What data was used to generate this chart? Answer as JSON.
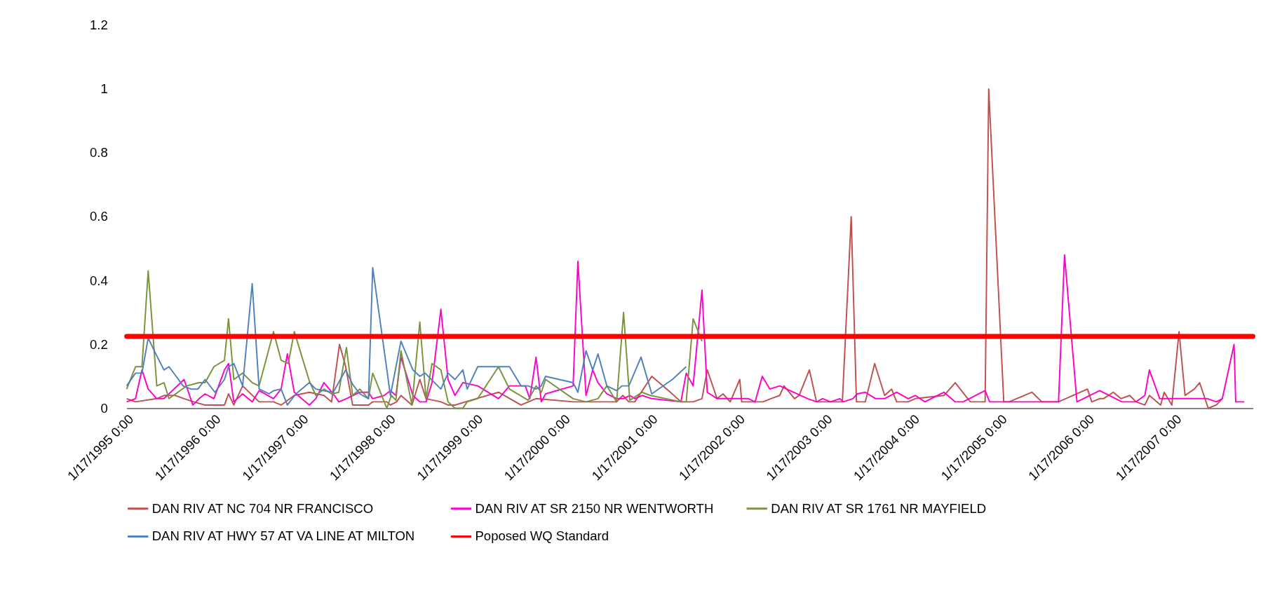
{
  "chart_data": {
    "type": "line",
    "xlim": [
      "1995-01-17",
      "2007-12-10"
    ],
    "xticks": [
      {
        "value": "1995-01-17",
        "label": "1/17/1995 0:00"
      },
      {
        "value": "1996-01-17",
        "label": "1/17/1996 0:00"
      },
      {
        "value": "1997-01-17",
        "label": "1/17/1997 0:00"
      },
      {
        "value": "1998-01-17",
        "label": "1/17/1998 0:00"
      },
      {
        "value": "1999-01-17",
        "label": "1/17/1999 0:00"
      },
      {
        "value": "2000-01-17",
        "label": "1/17/2000 0:00"
      },
      {
        "value": "2001-01-17",
        "label": "1/17/2001 0:00"
      },
      {
        "value": "2002-01-17",
        "label": "1/17/2002 0:00"
      },
      {
        "value": "2003-01-17",
        "label": "1/17/2003 0:00"
      },
      {
        "value": "2004-01-17",
        "label": "1/17/2004 0:00"
      },
      {
        "value": "2005-01-17",
        "label": "1/17/2005 0:00"
      },
      {
        "value": "2006-01-17",
        "label": "1/17/2006 0:00"
      },
      {
        "value": "2007-01-17",
        "label": "1/17/2007 0:00"
      }
    ],
    "ylim": [
      0,
      1.2
    ],
    "yticks": [
      0,
      0.2,
      0.4,
      0.6,
      0.8,
      1,
      1.2
    ],
    "grid": false,
    "legend": "bottom",
    "line_style": "solid",
    "series": [
      {
        "name": "DAN RIV AT NC 704 NR FRANCISCO",
        "color": "#c0504d",
        "x": [
          "1995-01-17",
          "1995-02-23",
          "1995-05-23",
          "1995-06-22",
          "1995-08-08",
          "1995-09-14",
          "1995-10-24",
          "1995-12-11",
          "1996-03-01",
          "1996-03-18",
          "1996-04-09",
          "1996-05-16",
          "1996-07-24",
          "1996-09-22",
          "1996-10-24",
          "1996-12-18",
          "1997-02-19",
          "1997-04-21",
          "1997-05-23",
          "1997-06-25",
          "1997-07-21",
          "1997-08-19",
          "1997-10-24",
          "1997-11-11",
          "1998-01-09",
          "1998-01-24",
          "1998-02-19",
          "1998-03-09",
          "1998-04-24",
          "1998-05-27",
          "1998-06-22",
          "1998-08-23",
          "1998-09-22",
          "1998-10-21",
          "1999-01-17",
          "1999-04-21",
          "1999-07-24",
          "1999-09-25",
          "2000-02-27",
          "2000-08-27",
          "2000-09-22",
          "2000-10-17",
          "2000-11-11",
          "2001-01-21",
          "2001-04-09",
          "2001-05-23",
          "2001-07-13",
          "2001-08-19",
          "2001-09-10",
          "2001-10-21",
          "2001-11-15",
          "2001-12-15",
          "2002-01-24",
          "2002-02-01",
          "2002-05-01",
          "2002-06-03",
          "2002-07-10",
          "2002-07-28",
          "2002-09-10",
          "2002-09-29",
          "2002-11-11",
          "2002-12-11",
          "2003-03-29",
          "2003-05-05",
          "2003-05-27",
          "2003-07-03",
          "2003-08-11",
          "2003-09-22",
          "2003-10-21",
          "2003-11-11",
          "2003-12-29",
          "2004-01-28",
          "2004-05-27",
          "2004-07-13",
          "2004-09-14",
          "2004-11-15",
          "2004-11-30",
          "2005-02-01",
          "2005-02-23",
          "2005-05-30",
          "2005-07-10",
          "2005-09-18",
          "2006-01-17",
          "2006-02-04",
          "2006-03-09",
          "2006-03-25",
          "2006-05-05",
          "2006-06-06",
          "2006-07-13",
          "2006-08-08",
          "2006-09-14",
          "2006-10-03",
          "2006-11-19",
          "2006-12-04",
          "2007-01-05",
          "2007-02-04",
          "2007-03-01",
          "2007-04-09",
          "2007-05-01",
          "2007-06-06",
          "2007-07-10",
          "2007-08-04"
        ],
        "values": [
          0.03,
          0.02,
          0.03,
          0.04,
          0.04,
          0.03,
          0.02,
          0.01,
          0.01,
          0.045,
          0.01,
          0.07,
          0.02,
          0.02,
          0.01,
          0.04,
          0.05,
          0.04,
          0.02,
          0.2,
          0.13,
          0.01,
          0.01,
          0.02,
          0.02,
          0.01,
          0.02,
          0.04,
          0.01,
          0.09,
          0.03,
          0.02,
          0.01,
          0.01,
          0.03,
          0.05,
          0.01,
          0.03,
          0.02,
          0.02,
          0.04,
          0.02,
          0.02,
          0.1,
          0.05,
          0.02,
          0.02,
          0.03,
          0.12,
          0.03,
          0.045,
          0.02,
          0.09,
          0.02,
          0.02,
          0.03,
          0.04,
          0.07,
          0.03,
          0.04,
          0.12,
          0.02,
          0.02,
          0.6,
          0.02,
          0.02,
          0.14,
          0.04,
          0.06,
          0.02,
          0.02,
          0.03,
          0.04,
          0.08,
          0.02,
          0.02,
          1.0,
          0.02,
          0.02,
          0.05,
          0.02,
          0.02,
          0.06,
          0.02,
          0.03,
          0.03,
          0.05,
          0.03,
          0.04,
          0.02,
          0.01,
          0.04,
          0.01,
          0.05,
          0.01,
          0.24,
          0.04,
          0.06,
          0.08,
          0.0,
          0.01,
          0.03
        ]
      },
      {
        "name": "DAN RIV AT SR 2150 NR WENTWORTH",
        "color": "#ff00cc",
        "x": [
          "1995-01-17",
          "1995-02-23",
          "1995-03-22",
          "1995-04-17",
          "1995-05-23",
          "1995-06-22",
          "1995-07-13",
          "1995-09-14",
          "1995-10-21",
          "1995-11-16",
          "1995-12-11",
          "1996-01-17",
          "1996-03-01",
          "1996-03-18",
          "1996-04-09",
          "1996-05-16",
          "1996-06-25",
          "1996-07-24",
          "1996-09-22",
          "1996-10-24",
          "1996-11-19",
          "1996-12-18",
          "1997-02-19",
          "1997-03-18",
          "1997-04-21",
          "1997-05-30",
          "1997-06-22",
          "1997-07-24",
          "1997-09-18",
          "1997-10-24",
          "1997-11-11",
          "1997-12-29",
          "1998-01-24",
          "1998-02-16",
          "1998-03-09",
          "1998-04-28",
          "1998-05-27",
          "1998-06-22",
          "1998-07-17",
          "1998-08-23",
          "1998-09-22",
          "1998-10-21",
          "1998-11-23",
          "1999-01-24",
          "1999-04-21",
          "1999-06-06",
          "1999-08-11",
          "1999-08-30",
          "1999-09-25",
          "1999-10-17",
          "1999-11-04",
          "2000-02-27",
          "2000-03-18",
          "2000-04-21",
          "2000-05-19",
          "2000-06-10",
          "2000-07-17",
          "2000-08-27",
          "2000-09-25",
          "2000-10-21",
          "2000-11-11",
          "2000-12-11",
          "2001-01-21",
          "2001-05-23",
          "2001-06-14",
          "2001-07-13",
          "2001-08-19",
          "2001-09-10",
          "2001-10-21",
          "2002-03-01",
          "2002-03-29",
          "2002-04-28",
          "2002-05-30",
          "2002-07-10",
          "2002-09-06",
          "2002-11-04",
          "2002-12-11",
          "2003-01-05",
          "2003-02-08",
          "2003-03-18",
          "2003-04-02",
          "2003-05-12",
          "2003-05-30",
          "2003-07-03",
          "2003-08-15",
          "2003-09-22",
          "2003-11-11",
          "2003-12-29",
          "2004-01-28",
          "2004-03-08",
          "2004-05-27",
          "2004-07-13",
          "2004-08-15",
          "2004-11-15",
          "2004-12-04",
          "2005-09-18",
          "2005-10-13",
          "2005-12-04",
          "2006-03-09",
          "2006-06-10",
          "2006-08-08",
          "2006-09-14",
          "2006-10-03",
          "2006-11-15",
          "2007-06-03",
          "2007-07-10",
          "2007-08-04",
          "2007-09-22",
          "2007-09-29",
          "2007-11-04"
        ],
        "values": [
          0.02,
          0.03,
          0.12,
          0.06,
          0.03,
          0.03,
          0.045,
          0.09,
          0.01,
          0.03,
          0.045,
          0.03,
          0.12,
          0.14,
          0.02,
          0.045,
          0.02,
          0.055,
          0.03,
          0.06,
          0.17,
          0.05,
          0.01,
          0.03,
          0.08,
          0.045,
          0.02,
          0.03,
          0.05,
          0.05,
          0.03,
          0.04,
          0.055,
          0.04,
          0.16,
          0.04,
          0.02,
          0.02,
          0.08,
          0.31,
          0.09,
          0.04,
          0.08,
          0.07,
          0.03,
          0.07,
          0.07,
          0.03,
          0.16,
          0.02,
          0.045,
          0.07,
          0.46,
          0.04,
          0.12,
          0.08,
          0.045,
          0.03,
          0.03,
          0.04,
          0.03,
          0.04,
          0.03,
          0.02,
          0.11,
          0.07,
          0.37,
          0.05,
          0.03,
          0.03,
          0.02,
          0.1,
          0.06,
          0.07,
          0.05,
          0.03,
          0.02,
          0.03,
          0.02,
          0.03,
          0.02,
          0.03,
          0.045,
          0.05,
          0.03,
          0.03,
          0.05,
          0.03,
          0.04,
          0.02,
          0.05,
          0.02,
          0.02,
          0.055,
          0.02,
          0.02,
          0.48,
          0.02,
          0.055,
          0.02,
          0.02,
          0.04,
          0.12,
          0.03,
          0.03,
          0.02,
          0.03,
          0.2,
          0.02,
          0.02
        ]
      },
      {
        "name": "DAN RIV AT SR 1761 NR MAYFIELD",
        "color": "#77933c",
        "x": [
          "1995-01-17",
          "1995-02-23",
          "1995-03-22",
          "1995-04-17",
          "1995-05-23",
          "1995-06-22",
          "1995-07-13",
          "1995-09-25",
          "1995-11-16",
          "1995-12-11",
          "1996-01-17",
          "1996-03-01",
          "1996-03-18",
          "1996-04-09",
          "1996-05-16",
          "1996-06-25",
          "1996-07-24",
          "1996-09-22",
          "1996-10-24",
          "1996-11-23",
          "1996-12-18",
          "1997-02-19",
          "1997-03-18",
          "1997-04-21",
          "1997-05-23",
          "1997-06-22",
          "1997-07-24",
          "1997-08-19",
          "1997-09-18",
          "1997-10-24",
          "1997-11-11",
          "1998-01-09",
          "1998-01-28",
          "1998-02-16",
          "1998-03-09",
          "1998-04-24",
          "1998-05-27",
          "1998-06-22",
          "1998-07-17",
          "1998-08-23",
          "1998-09-22",
          "1998-10-21",
          "1998-11-23",
          "1998-12-11",
          "1999-01-24",
          "1999-04-21",
          "1999-06-06",
          "1999-08-23",
          "1999-09-25",
          "1999-10-17",
          "1999-11-04",
          "2000-02-27",
          "2000-04-21",
          "2000-06-10",
          "2000-07-17",
          "2000-08-27",
          "2000-09-25",
          "2000-10-21",
          "2000-12-11",
          "2001-01-15",
          "2001-05-23",
          "2001-06-14",
          "2001-07-13",
          "2001-08-19"
        ],
        "values": [
          0.06,
          0.13,
          0.13,
          0.43,
          0.07,
          0.08,
          0.03,
          0.07,
          0.08,
          0.08,
          0.13,
          0.15,
          0.28,
          0.09,
          0.11,
          0.08,
          0.07,
          0.24,
          0.15,
          0.14,
          0.24,
          0.085,
          0.04,
          0.06,
          0.045,
          0.05,
          0.19,
          0.04,
          0.06,
          0.03,
          0.11,
          0.0,
          0.04,
          0.025,
          0.18,
          0.01,
          0.27,
          0.03,
          0.14,
          0.12,
          0.02,
          0.0,
          0.0,
          0.02,
          0.03,
          0.13,
          0.06,
          0.025,
          0.07,
          0.05,
          0.09,
          0.03,
          0.02,
          0.03,
          0.07,
          0.02,
          0.3,
          0.025,
          0.05,
          0.04,
          0.02,
          0.02,
          0.28,
          0.21
        ]
      },
      {
        "name": "DAN RIV AT HWY 57 AT VA LINE AT MILTON",
        "color": "#4f81bd",
        "x": [
          "1995-01-17",
          "1995-02-23",
          "1995-03-22",
          "1995-04-17",
          "1995-05-19",
          "1995-06-22",
          "1995-07-13",
          "1995-09-10",
          "1995-10-13",
          "1995-11-11",
          "1995-12-11",
          "1996-01-21",
          "1996-03-01",
          "1996-03-18",
          "1996-04-09",
          "1996-05-16",
          "1996-06-25",
          "1996-07-24",
          "1996-09-03",
          "1996-09-22",
          "1996-10-24",
          "1996-11-19",
          "1996-12-25",
          "1997-02-19",
          "1997-03-18",
          "1997-04-21",
          "1997-05-30",
          "1997-07-21",
          "1997-08-19",
          "1997-09-18",
          "1997-10-24",
          "1997-11-11",
          "1998-01-24",
          "1998-03-09",
          "1998-04-28",
          "1998-05-27",
          "1998-06-18",
          "1998-08-23",
          "1998-09-22",
          "1998-10-21",
          "1998-11-23",
          "1998-12-11",
          "1999-01-24",
          "1999-06-06",
          "1999-07-24",
          "1999-08-23",
          "1999-09-25",
          "1999-10-17",
          "1999-11-04",
          "2000-02-27",
          "2000-03-18",
          "2000-04-21",
          "2000-05-19",
          "2000-06-10",
          "2000-07-17",
          "2000-08-27",
          "2000-09-18",
          "2000-10-17",
          "2000-12-07",
          "2001-01-21",
          "2001-04-17",
          "2001-06-14"
        ],
        "values": [
          0.07,
          0.11,
          0.11,
          0.22,
          0.17,
          0.12,
          0.13,
          0.07,
          0.06,
          0.06,
          0.09,
          0.05,
          0.09,
          0.13,
          0.14,
          0.07,
          0.39,
          0.06,
          0.045,
          0.055,
          0.06,
          0.01,
          0.045,
          0.08,
          0.06,
          0.055,
          0.05,
          0.12,
          0.075,
          0.045,
          0.03,
          0.44,
          0.04,
          0.21,
          0.12,
          0.1,
          0.11,
          0.06,
          0.11,
          0.09,
          0.12,
          0.06,
          0.13,
          0.13,
          0.07,
          0.07,
          0.06,
          0.07,
          0.1,
          0.08,
          0.05,
          0.18,
          0.12,
          0.17,
          0.07,
          0.055,
          0.07,
          0.07,
          0.16,
          0.045,
          0.09,
          0.13
        ]
      }
    ],
    "ref_lines": [
      {
        "axis": "y",
        "value": 0.225,
        "label": "Poposed WQ Standard",
        "color": "#ff0000"
      }
    ]
  }
}
